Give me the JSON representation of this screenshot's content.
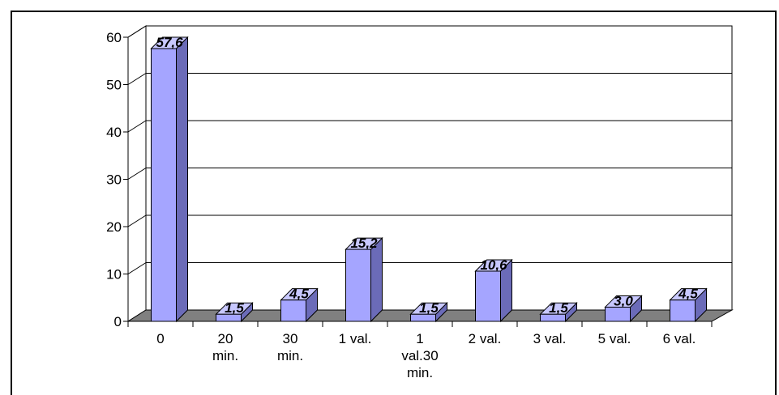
{
  "chart_data": {
    "type": "bar",
    "style": "3d-column",
    "categories": [
      [
        "0"
      ],
      [
        "20",
        "min."
      ],
      [
        "30",
        "min."
      ],
      [
        "1 val."
      ],
      [
        "1",
        "val.30",
        "min."
      ],
      [
        "2 val."
      ],
      [
        "3 val."
      ],
      [
        "5 val."
      ],
      [
        "6 val."
      ]
    ],
    "values": [
      57.6,
      1.5,
      4.5,
      15.2,
      1.5,
      10.6,
      1.5,
      3.0,
      4.5
    ],
    "data_labels": [
      "57,6",
      "1,5",
      "4,5",
      "15,2",
      "1,5",
      "10,6",
      "1,5",
      "3,0",
      "4,5"
    ],
    "y_ticks": [
      "0",
      "10",
      "20",
      "30",
      "40",
      "50",
      "60"
    ],
    "ylim": [
      0,
      60
    ],
    "grid": true,
    "legend": false,
    "colors": {
      "bar_front": "#A5A5FF",
      "bar_top": "#C8C8FF",
      "bar_side": "#6B6BB8",
      "floor": "#808080",
      "grid": "#000000"
    }
  }
}
